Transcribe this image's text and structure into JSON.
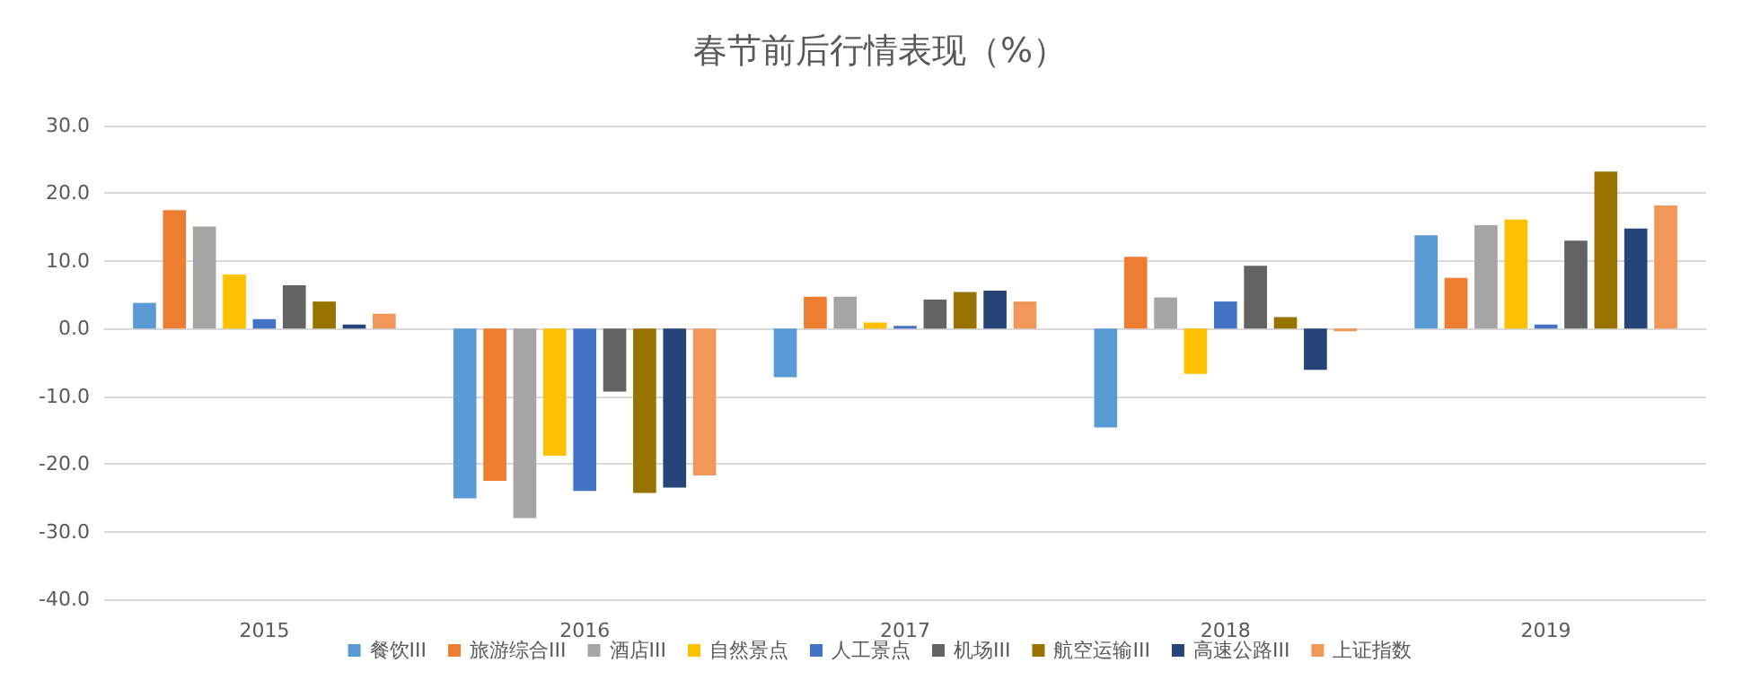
{
  "chart_data": {
    "type": "bar",
    "title": "春节前后行情表现（%）",
    "categories": [
      "2015",
      "2016",
      "2017",
      "2018",
      "2019"
    ],
    "series": [
      {
        "name": "餐饮III",
        "color": "#5b9bd5",
        "values": [
          3.8,
          -25.1,
          -7.2,
          -14.6,
          13.8
        ]
      },
      {
        "name": "旅游综合III",
        "color": "#ed7d31",
        "values": [
          17.5,
          -22.5,
          4.7,
          10.6,
          7.5
        ]
      },
      {
        "name": "酒店III",
        "color": "#a5a5a5",
        "values": [
          15.1,
          -28.0,
          4.7,
          4.6,
          15.3
        ]
      },
      {
        "name": "自然景点",
        "color": "#ffc000",
        "values": [
          8.0,
          -18.8,
          0.9,
          -6.7,
          16.1
        ]
      },
      {
        "name": "人工景点",
        "color": "#4472c4",
        "values": [
          1.4,
          -24.0,
          0.4,
          4.0,
          0.6
        ]
      },
      {
        "name": "机场III",
        "color": "#636363",
        "values": [
          6.4,
          -9.3,
          4.3,
          9.3,
          13.0
        ]
      },
      {
        "name": "航空运输III",
        "color": "#997300",
        "values": [
          4.0,
          -24.3,
          5.4,
          1.7,
          23.2
        ]
      },
      {
        "name": "高速公路III",
        "color": "#264478",
        "values": [
          0.6,
          -23.5,
          5.6,
          -6.1,
          14.8
        ]
      },
      {
        "name": "上证指数",
        "color": "#f1975a",
        "values": [
          2.2,
          -21.7,
          4.0,
          -0.4,
          18.2
        ]
      }
    ],
    "ylim": [
      -40,
      30
    ],
    "yticks": [
      {
        "value": -40,
        "label": "-40.0"
      },
      {
        "value": -30,
        "label": "-30.0"
      },
      {
        "value": -20,
        "label": "-20.0"
      },
      {
        "value": -10,
        "label": "-10.0"
      },
      {
        "value": 0,
        "label": "0.0"
      },
      {
        "value": 10,
        "label": "10.0"
      },
      {
        "value": 20,
        "label": "20.0"
      },
      {
        "value": 30,
        "label": "30.0"
      }
    ],
    "grid": "y",
    "legend": "bottom"
  }
}
